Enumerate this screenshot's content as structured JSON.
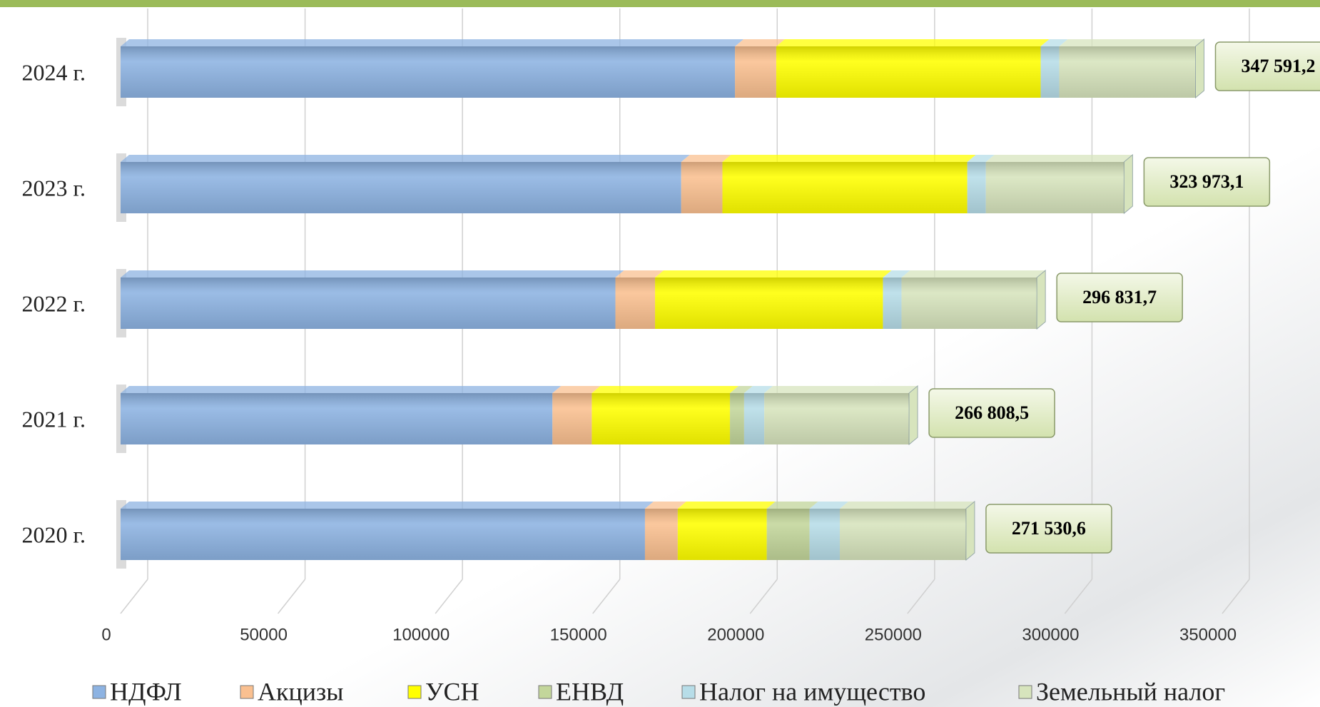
{
  "chart_data": {
    "type": "bar",
    "orientation": "horizontal",
    "stacked": true,
    "categories": [
      "2024 г.",
      "2023 г.",
      "2022 г.",
      "2021 г.",
      "2020 г."
    ],
    "series": [
      {
        "name": "НДФЛ",
        "color": "#8db3e2",
        "values": [
          195.2,
          178.1,
          157.2,
          137.2,
          166.6
        ]
      },
      {
        "name": "Акцизы",
        "color": "#fac090",
        "values": [
          13.1,
          13.1,
          12.6,
          12.5,
          10.4
        ]
      },
      {
        "name": "УСН",
        "color": "#ffff00",
        "values": [
          84.0,
          77.8,
          72.4,
          43.9,
          28.3
        ]
      },
      {
        "name": "ЕНВД",
        "color": "#c3d69b",
        "values": [
          0,
          0,
          0,
          4.5,
          13.6
        ]
      },
      {
        "name": "Налог на имущество",
        "color": "#b7dde8",
        "values": [
          5.9,
          5.9,
          5.9,
          6.4,
          9.6
        ]
      },
      {
        "name": "Земельный налог",
        "color": "#d7e4bd",
        "values": [
          43.3,
          43.9,
          43.0,
          46.0,
          40.1
        ]
      }
    ],
    "totals": {
      "values": [
        347591.2,
        323973.1,
        296831.7,
        266808.5,
        271530.6
      ],
      "value_labels": [
        "347 591,2",
        "323 973,1",
        "296 831,7",
        "266 808,5",
        "271 530,6"
      ]
    },
    "xlim": [
      0,
      350000
    ],
    "xticks": [
      0,
      50000,
      100000,
      150000,
      200000,
      250000,
      300000,
      350000
    ],
    "grid": true,
    "legend": "bottom"
  }
}
